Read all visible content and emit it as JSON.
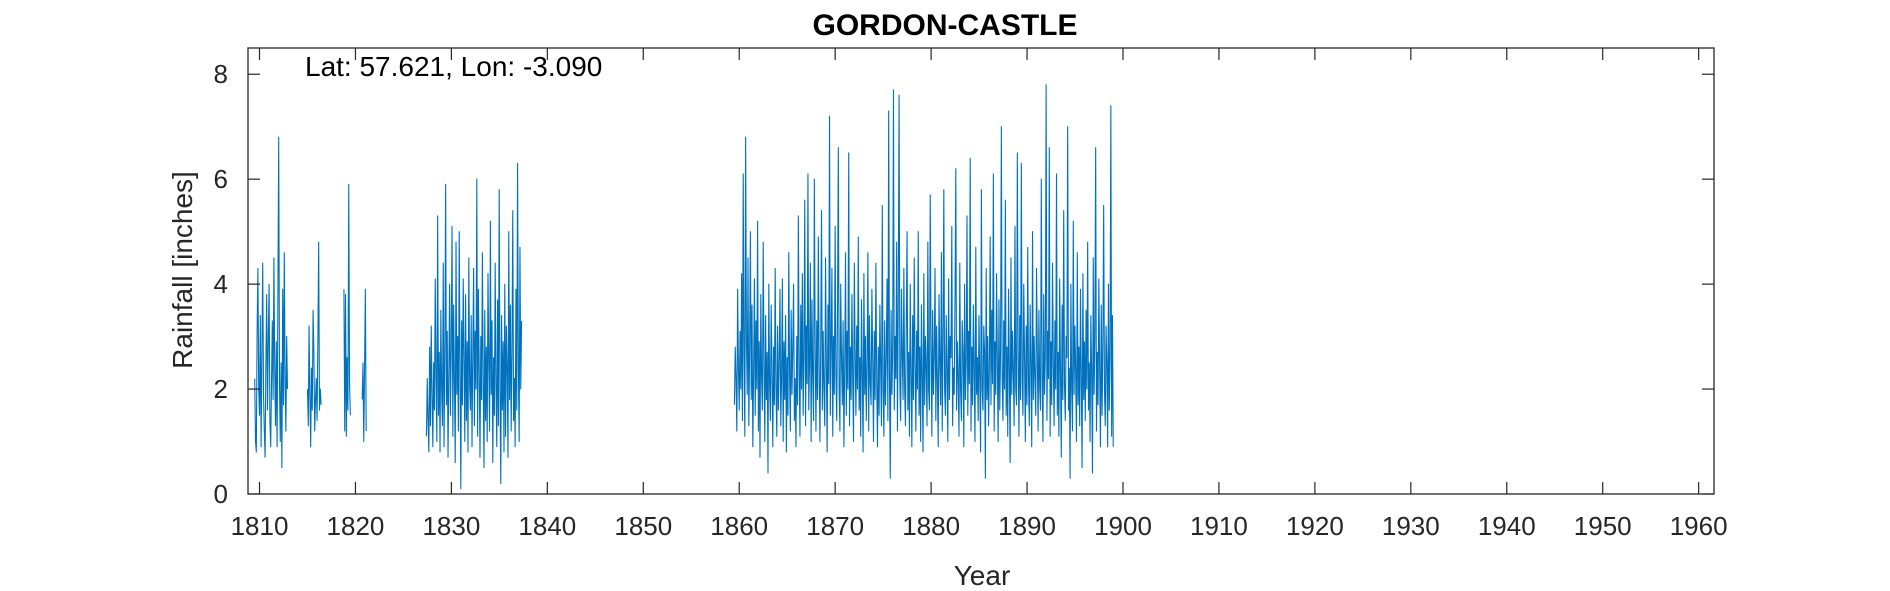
{
  "chart_data": {
    "type": "line",
    "title": "GORDON-CASTLE",
    "annotation": "Lat: 57.621, Lon: -3.090",
    "xlabel": "Year",
    "ylabel": "Rainfall [inches]",
    "xlim": [
      1808.8,
      1961.6
    ],
    "ylim": [
      0,
      8.5
    ],
    "xticks": [
      1810,
      1820,
      1830,
      1840,
      1850,
      1860,
      1870,
      1880,
      1890,
      1900,
      1910,
      1920,
      1930,
      1940,
      1950,
      1960
    ],
    "yticks": [
      0,
      2,
      4,
      6,
      8
    ],
    "grid": false,
    "box": true,
    "series_color": "#0072BD",
    "segments": [
      {
        "x_start": 1809.5,
        "x_step": 0.0833,
        "values": [
          2.2,
          1.0,
          0.8,
          3.1,
          4.3,
          2.0,
          1.5,
          3.4,
          0.9,
          2.7,
          4.4,
          1.9,
          1.2,
          0.7,
          2.5,
          3.8,
          1.6,
          2.9,
          4.0,
          1.4,
          0.9,
          2.1,
          3.3,
          1.8,
          4.5,
          2.4,
          1.3,
          2.9,
          0.9,
          3.7,
          6.8,
          2.1,
          1.0,
          2.5,
          0.5,
          3.9,
          1.7,
          4.6,
          2.2,
          1.2,
          3.0,
          2.0
        ]
      },
      {
        "x_start": 1815.0,
        "x_step": 0.0833,
        "values": [
          2.0,
          1.3,
          3.2,
          1.9,
          0.9,
          2.4,
          1.6,
          3.5,
          2.7,
          1.2,
          1.8,
          2.2,
          1.4,
          2.9,
          4.8,
          1.6,
          2.0,
          1.7
        ]
      },
      {
        "x_start": 1818.8,
        "x_step": 0.0833,
        "values": [
          3.9,
          1.2,
          3.8,
          1.1,
          2.6,
          1.6,
          5.9,
          2.1,
          1.5
        ]
      },
      {
        "x_start": 1820.7,
        "x_step": 0.0833,
        "values": [
          1.8,
          2.5,
          1.0,
          2.4,
          3.9,
          1.2
        ]
      },
      {
        "x_start": 1827.4,
        "x_step": 0.0833,
        "values": [
          1.1,
          2.2,
          1.4,
          0.8,
          2.8,
          1.3,
          3.2,
          1.9,
          0.9,
          2.5,
          1.6,
          4.1,
          2.2,
          1.0,
          5.3,
          1.5,
          2.7,
          0.8,
          3.5,
          2.0,
          1.3,
          4.4,
          0.9,
          2.6,
          5.9,
          1.7,
          3.1,
          0.7,
          2.3,
          4.0,
          1.5,
          2.8,
          5.1,
          1.1,
          3.6,
          2.2,
          0.6,
          4.8,
          1.9,
          3.0,
          1.2,
          5.0,
          2.4,
          0.1,
          3.3,
          1.7,
          4.1,
          2.6,
          1.0,
          3.8,
          1.4,
          2.9,
          0.8,
          4.5,
          2.1,
          1.6,
          3.4,
          0.9,
          2.7,
          4.3,
          1.3,
          3.1,
          2.0,
          6.0,
          1.1,
          3.9,
          2.4,
          0.7,
          3.0,
          1.8,
          4.6,
          2.2,
          0.5,
          3.5,
          1.4,
          2.8,
          1.0,
          4.2,
          2.5,
          1.2,
          5.2,
          1.9,
          3.3,
          0.6,
          2.6,
          1.5,
          4.4,
          2.1,
          0.9,
          3.7,
          1.3,
          5.8,
          2.0,
          0.2,
          3.4,
          1.6,
          2.9,
          0.8,
          4.0,
          1.1,
          3.2,
          2.4,
          0.7,
          5.0,
          1.8,
          3.6,
          1.2,
          2.7,
          5.4,
          1.4,
          2.2,
          0.9,
          3.9,
          1.6,
          6.3,
          2.5,
          1.0,
          4.7,
          2.0,
          3.3
        ]
      },
      {
        "x_start": 1859.5,
        "x_step": 0.0833,
        "values": [
          1.7,
          2.8,
          2.2,
          1.2,
          3.9,
          2.4,
          1.6,
          3.1,
          2.0,
          4.2,
          1.4,
          6.1,
          2.6,
          1.1,
          6.8,
          3.0,
          1.9,
          4.5,
          1.3,
          2.7,
          5.0,
          1.8,
          3.6,
          0.9,
          2.3,
          4.1,
          1.5,
          3.3,
          2.0,
          5.2,
          1.2,
          2.9,
          0.7,
          3.8,
          2.2,
          1.6,
          4.8,
          2.5,
          1.0,
          3.4,
          1.8,
          2.7,
          0.4,
          4.0,
          2.1,
          1.4,
          3.6,
          2.4,
          0.9,
          2.8,
          1.7,
          4.3,
          2.0,
          1.1,
          3.2,
          1.6,
          2.5,
          3.9,
          1.3,
          2.2,
          4.1,
          1.0,
          2.9,
          1.8,
          3.4,
          0.8,
          2.6,
          1.5,
          4.6,
          2.3,
          1.2,
          3.5,
          1.9,
          2.8,
          4.0,
          1.4,
          2.2,
          0.9,
          3.0,
          1.7,
          5.3,
          2.4,
          1.1,
          3.6,
          2.0,
          4.2,
          1.5,
          2.7,
          5.6,
          1.3,
          3.2,
          2.1,
          6.1,
          1.6,
          2.5,
          4.4,
          1.0,
          3.7,
          2.2,
          1.4,
          6.0,
          2.8,
          1.2,
          3.3,
          1.8,
          4.9,
          2.4,
          1.0,
          2.9,
          5.4,
          1.6,
          3.1,
          2.0,
          1.3,
          4.5,
          2.5,
          0.8,
          3.6,
          2.1,
          7.2,
          1.5,
          2.8,
          4.3,
          1.1,
          3.0,
          1.9,
          5.1,
          2.3,
          1.4,
          3.5,
          6.6,
          2.0,
          1.2,
          4.0,
          2.6,
          1.7,
          3.3,
          0.9,
          2.4,
          4.6,
          1.5,
          3.1,
          2.0,
          6.5,
          1.3,
          2.8,
          1.8,
          3.8,
          2.2,
          1.0,
          4.4,
          2.7,
          1.5,
          3.2,
          2.0,
          4.9,
          1.6,
          2.6,
          1.1,
          3.7,
          2.3,
          0.8,
          4.2,
          1.9,
          3.0,
          1.4,
          2.5,
          4.6,
          1.2,
          3.4,
          2.1,
          1.7,
          3.9,
          2.6,
          1.0,
          3.1,
          1.8,
          4.4,
          2.2,
          0.9,
          2.8,
          1.5,
          3.6,
          2.4,
          1.3,
          5.5,
          2.0,
          1.1,
          3.3,
          1.7,
          2.6,
          4.1,
          1.4,
          7.3,
          2.3,
          0.3,
          3.5,
          1.9,
          2.7,
          7.7,
          1.6,
          3.0,
          2.2,
          4.8,
          1.2,
          3.7,
          7.6,
          2.1,
          1.4,
          3.9,
          2.6,
          1.8,
          4.3,
          2.0,
          1.3,
          3.2,
          5.0,
          1.6,
          2.7,
          1.1,
          4.0,
          2.3,
          0.9,
          3.4,
          1.8,
          4.5,
          2.5,
          1.2,
          3.1,
          2.0,
          5.0,
          1.5,
          2.8,
          1.0,
          3.6,
          2.2,
          0.8,
          4.2,
          1.7,
          3.0,
          2.4,
          1.3,
          4.8,
          2.0,
          1.6,
          5.7,
          2.9,
          1.1,
          3.5,
          1.9,
          2.6,
          4.3,
          1.4,
          3.2,
          2.1,
          0.9,
          3.8,
          2.5,
          1.7,
          4.6,
          1.2,
          2.8,
          5.8,
          2.0,
          1.5,
          3.4,
          2.3,
          1.0,
          4.1,
          1.8,
          3.0,
          2.6,
          5.1,
          1.3,
          2.4,
          1.9,
          3.7,
          6.2,
          1.6,
          2.9,
          2.2,
          1.1,
          4.4,
          2.0,
          1.4,
          3.3,
          2.7,
          0.9,
          4.0,
          1.8,
          2.5,
          5.3,
          1.5,
          3.1,
          2.1,
          6.4,
          1.2,
          2.8,
          1.7,
          3.6,
          2.3,
          1.0,
          4.7,
          1.9,
          2.6,
          1.4,
          3.4,
          2.2,
          0.8,
          5.8,
          2.0,
          1.6,
          3.2,
          2.7,
          0.3,
          4.3,
          1.8,
          3.0,
          1.3,
          2.4,
          4.9,
          1.7,
          3.5,
          2.1,
          6.1,
          1.2,
          2.9,
          1.9,
          4.2,
          2.5,
          1.0,
          3.7,
          1.6,
          2.7,
          7.0,
          2.2,
          1.4,
          3.3,
          2.0,
          5.6,
          1.5,
          2.8,
          1.1,
          3.9,
          2.4,
          0.6,
          4.5,
          1.9,
          3.1,
          2.3,
          1.3,
          5.1,
          2.0,
          1.7,
          6.5,
          2.7,
          1.1,
          3.4,
          1.8,
          6.3,
          2.2,
          1.5,
          4.0,
          2.6,
          1.0,
          3.2,
          1.7,
          4.7,
          2.1,
          1.3,
          3.6,
          2.4,
          0.9,
          5.0,
          1.8,
          3.0,
          2.2,
          1.5,
          4.3,
          2.7,
          1.2,
          3.5,
          2.0,
          1.6,
          6.0,
          2.3,
          1.0,
          3.8,
          1.9,
          2.6,
          7.8,
          1.4,
          3.1,
          2.2,
          6.6,
          1.1,
          2.9,
          1.7,
          4.4,
          2.5,
          1.3,
          3.3,
          2.0,
          6.1,
          1.5,
          2.7,
          1.1,
          4.1,
          2.3,
          0.7,
          3.6,
          1.8,
          5.4,
          2.1,
          1.4,
          3.0,
          2.6,
          7.0,
          1.6,
          2.4,
          0.3,
          4.0,
          2.0,
          1.2,
          5.2,
          1.9,
          3.2,
          2.3,
          1.0,
          4.6,
          1.7,
          2.8,
          1.3,
          3.9,
          2.2,
          0.5,
          4.2,
          1.8,
          2.9,
          1.4,
          3.5,
          2.0,
          4.8,
          1.6,
          2.5,
          1.0,
          3.4,
          2.3,
          0.4,
          4.5,
          1.9,
          3.0,
          6.6,
          1.2,
          2.7,
          1.7,
          4.1,
          2.4,
          0.9,
          3.6,
          1.5,
          2.8,
          5.5,
          2.0,
          1.3,
          3.2,
          2.5,
          0.9,
          4.0,
          1.6,
          2.6,
          7.4,
          1.1,
          3.4,
          0.9
        ]
      }
    ]
  }
}
